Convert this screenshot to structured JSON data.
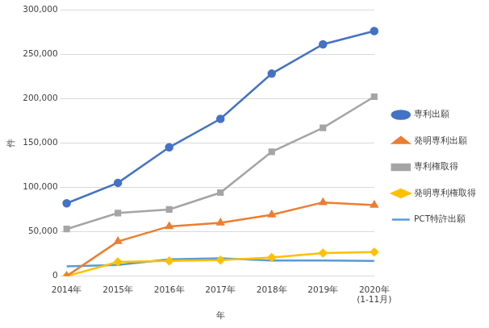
{
  "chart_data": {
    "type": "line",
    "x_label": "年",
    "y_label": "件",
    "categories": [
      "2014年",
      "2015年",
      "2016年",
      "2017年",
      "2018年",
      "2019年",
      [
        "2020年",
        "(1-11月)"
      ]
    ],
    "series": [
      {
        "name": "専利出願",
        "color": "#4472c4",
        "marker": "circle",
        "values": [
          82000,
          105000,
          145000,
          177000,
          228000,
          261000,
          276000
        ]
      },
      {
        "name": "発明専利出願",
        "color": "#ed7d31",
        "marker": "triangle",
        "values": [
          0,
          39000,
          56000,
          60000,
          69000,
          83000,
          80000
        ]
      },
      {
        "name": "専利権取得",
        "color": "#a5a5a5",
        "marker": "square",
        "values": [
          53000,
          71000,
          75000,
          94000,
          140000,
          167000,
          202000
        ]
      },
      {
        "name": "発明専利権取得",
        "color": "#ffc000",
        "marker": "diamond",
        "values": [
          0,
          16000,
          17000,
          18000,
          21000,
          26000,
          27000
        ]
      },
      {
        "name": "PCT特許出願",
        "color": "#5b9bd5",
        "marker": "none",
        "values": [
          11000,
          12500,
          19000,
          20000,
          17500,
          17500,
          17000
        ]
      }
    ],
    "ylim": [
      0,
      300000
    ],
    "yticks": [
      0,
      {
        "value": 50000,
        "label": "50,000"
      },
      {
        "value": 100000,
        "label": "100,000"
      },
      {
        "value": 150000,
        "label": "150,000"
      },
      {
        "value": 200000,
        "label": "200,000"
      },
      {
        "value": 250000,
        "label": "250,000"
      },
      {
        "value": 300000,
        "label": "300,000"
      }
    ],
    "grid": true,
    "legend": "right"
  }
}
